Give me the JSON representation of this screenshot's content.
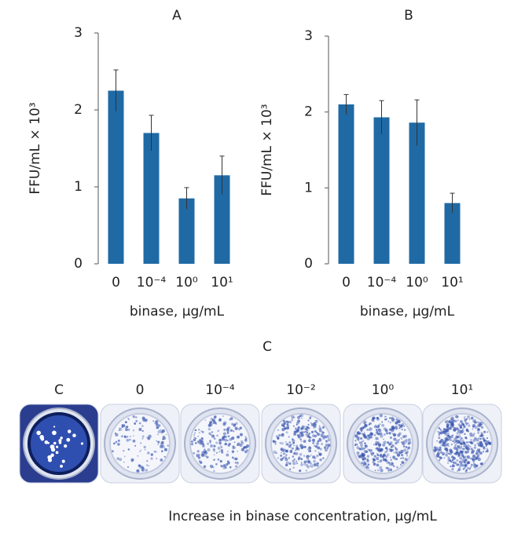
{
  "chart_data": [
    {
      "type": "bar",
      "title": "A",
      "x_label": "binase, μg/mL",
      "y_label": "FFU/mL × 10³",
      "categories": [
        "0",
        "10⁻⁴",
        "10⁰",
        "10¹"
      ],
      "series": [
        {
          "color": "#1f6aa5",
          "values": [
            2.25,
            1.7,
            0.85,
            1.15
          ],
          "errors": [
            0.27,
            0.23,
            0.14,
            0.25
          ]
        }
      ],
      "ylim": [
        0,
        3
      ],
      "yticks": [
        0,
        1,
        2,
        3
      ]
    },
    {
      "type": "bar",
      "title": "B",
      "x_label": "binase, μg/mL",
      "y_label": "FFU/mL × 10³",
      "categories": [
        "0",
        "10⁻⁴",
        "10⁰",
        "10¹"
      ],
      "series": [
        {
          "color": "#1f6aa5",
          "values": [
            2.1,
            1.93,
            1.86,
            0.8
          ],
          "errors": [
            0.13,
            0.22,
            0.3,
            0.13
          ]
        }
      ],
      "ylim": [
        0,
        3
      ],
      "yticks": [
        0,
        1,
        2,
        3
      ]
    }
  ],
  "panel_c": {
    "title": "C",
    "wells": [
      "C",
      "0",
      "10⁻⁴",
      "10⁻²",
      "10⁰",
      "10¹"
    ],
    "caption": "Increase in binase concentration, μg/mL"
  }
}
